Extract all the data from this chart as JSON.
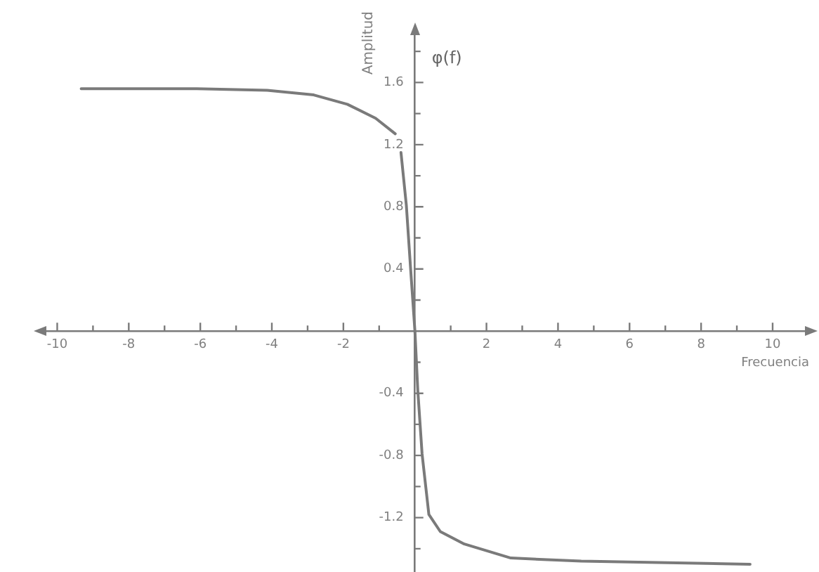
{
  "chart_data": {
    "type": "line",
    "xlabel": "Frecuencia",
    "ylabel": "Amplitud",
    "annotations": [
      "φ(f)"
    ],
    "xlim": [
      -10.5,
      11.1
    ],
    "ylim": [
      -1.55,
      1.95
    ],
    "xticks": [
      -10,
      {
        "value": -9,
        "label": null
      },
      -8,
      {
        "value": -7,
        "label": null
      },
      -6,
      {
        "value": -5,
        "label": null
      },
      -4,
      {
        "value": -3,
        "label": null
      },
      -2,
      {
        "value": -1,
        "label": null
      },
      {
        "value": 1,
        "label": null
      },
      2,
      {
        "value": 3,
        "label": null
      },
      4,
      {
        "value": 5,
        "label": null
      },
      6,
      {
        "value": 7,
        "label": null
      },
      8,
      {
        "value": 9,
        "label": null
      },
      10
    ],
    "yticks": [
      {
        "value": 1.8,
        "label": null
      },
      1.6,
      {
        "value": 1.4,
        "label": null
      },
      1.2,
      {
        "value": 1.0,
        "label": null
      },
      0.8,
      {
        "value": 0.6,
        "label": null
      },
      0.4,
      {
        "value": 0.2,
        "label": null
      },
      {
        "value": -0.2,
        "label": null
      },
      -0.4,
      {
        "value": -0.6,
        "label": null
      },
      -0.8,
      {
        "value": -1.0,
        "label": null
      },
      -1.2,
      {
        "value": -1.4,
        "label": null
      }
    ],
    "series": [
      {
        "color": "#7a7a7a",
        "x": [
          -9.33,
          -6.1,
          -4.13,
          -2.83,
          -1.89,
          -1.1,
          -0.55,
          -0.47,
          -0.39,
          -0.24,
          -0.12,
          0,
          0.08,
          0.2,
          0.39,
          0.71,
          1.38,
          2.68,
          4.65,
          9.37
        ],
        "values": [
          1.56,
          1.56,
          1.55,
          1.52,
          1.46,
          1.37,
          1.27,
          null,
          1.15,
          0.81,
          0.4,
          0,
          -0.38,
          -0.79,
          -1.18,
          -1.29,
          -1.37,
          -1.46,
          -1.48,
          -1.5
        ]
      }
    ],
    "grid": false,
    "legend": false,
    "marker": "none"
  }
}
